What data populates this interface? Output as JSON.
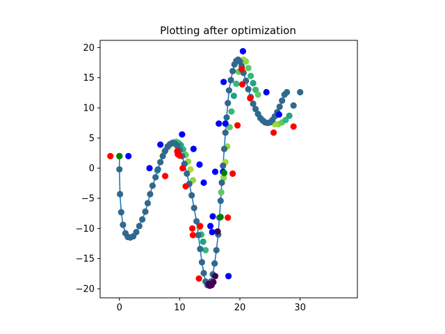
{
  "chart_data": {
    "type": "scatter",
    "title": "Plotting after optimization",
    "xlabel": "",
    "ylabel": "",
    "xlim": [
      -3.2,
      39.5
    ],
    "ylim": [
      -21.5,
      21.2
    ],
    "xticks": [
      0,
      10,
      20,
      30
    ],
    "yticks": [
      -20,
      -15,
      -10,
      -5,
      0,
      5,
      10,
      15,
      20
    ],
    "grid": false,
    "legend": "none",
    "colors": {
      "line": "#1f77b4",
      "path_points": "#31688e",
      "blue_points": "#0000ff",
      "red_points": "#ff0000",
      "green_points": "#008000"
    },
    "path": {
      "x": [
        0.0,
        0.0,
        0.1,
        0.3,
        0.6,
        1.0,
        1.4,
        1.8,
        2.3,
        2.8,
        3.3,
        3.8,
        4.3,
        4.7,
        5.1,
        5.5,
        6.0,
        6.4,
        6.8,
        7.2,
        7.6,
        8.0,
        8.4,
        8.8,
        9.2,
        9.6,
        10.0,
        10.4,
        10.8,
        11.2,
        11.6,
        12.0,
        12.4,
        12.8,
        13.1,
        13.4,
        13.7,
        14.0,
        14.3,
        14.6,
        14.9,
        15.2,
        15.5,
        15.8,
        16.1,
        16.4,
        16.6,
        16.8,
        17.0,
        17.2,
        17.4,
        17.6,
        17.8,
        18.0,
        18.2,
        18.5,
        18.8,
        19.1,
        19.4,
        19.7,
        20.0,
        20.3,
        20.6,
        21.0,
        21.4,
        21.8,
        22.2,
        22.6,
        23.0,
        23.4,
        23.8,
        24.2,
        24.6,
        25.0,
        25.4,
        25.8,
        26.2,
        26.6,
        27.0,
        27.4,
        27.8
      ],
      "y": [
        2.0,
        -0.2,
        -4.3,
        -7.3,
        -9.4,
        -10.8,
        -11.4,
        -11.5,
        -11.3,
        -10.6,
        -9.6,
        -8.5,
        -7.2,
        -5.8,
        -4.3,
        -2.9,
        -1.5,
        -0.2,
        1.0,
        2.0,
        2.9,
        3.6,
        4.0,
        4.2,
        4.1,
        3.7,
        3.0,
        2.0,
        0.7,
        -0.9,
        -2.6,
        -4.5,
        -6.6,
        -8.8,
        -11.1,
        -13.4,
        -15.6,
        -17.4,
        -18.8,
        -19.4,
        -19.4,
        -18.8,
        -17.6,
        -15.8,
        -13.6,
        -11.0,
        -8.2,
        -5.4,
        -2.4,
        0.4,
        3.2,
        5.9,
        8.4,
        10.8,
        12.9,
        14.6,
        16.1,
        17.2,
        17.8,
        18.0,
        17.7,
        16.9,
        15.8,
        14.5,
        13.1,
        11.8,
        10.7,
        9.8,
        9.0,
        8.3,
        7.9,
        7.6,
        7.5,
        7.6,
        8.0,
        8.6,
        9.3,
        10.2,
        11.2,
        12.2,
        12.6
      ]
    },
    "path_end": {
      "x": [
        28.9,
        30.0
      ],
      "y": [
        10.4,
        12.6
      ]
    },
    "blue_points": {
      "x": [
        1.5,
        5.0,
        6.8,
        10.4,
        12.3,
        13.3,
        14.0,
        15.1,
        15.4,
        15.5,
        15.9,
        16.5,
        17.2,
        17.3,
        17.6,
        18.1,
        20.5,
        24.4,
        26.5
      ],
      "y": [
        2.0,
        0.0,
        3.9,
        5.6,
        3.2,
        0.6,
        -2.4,
        -9.6,
        -10.6,
        -8.0,
        -0.6,
        7.4,
        -0.6,
        14.3,
        7.4,
        -17.9,
        19.4,
        12.6,
        8.9
      ]
    },
    "red_points": {
      "x": [
        -1.5,
        7.6,
        9.6,
        9.7,
        10.0,
        10.5,
        11.0,
        12.1,
        12.2,
        13.2,
        13.4,
        18.0,
        18.8,
        19.6,
        20.3,
        20.4,
        21.7,
        25.6,
        28.9
      ],
      "y": [
        2.0,
        -1.3,
        2.8,
        2.3,
        2.1,
        0.0,
        -3.0,
        -10.0,
        -11.1,
        -18.3,
        -9.6,
        -8.2,
        -0.9,
        7.1,
        16.4,
        13.9,
        11.6,
        5.9,
        6.9
      ]
    },
    "green_points": {
      "x": [
        0.0,
        16.8,
        17.4
      ],
      "y": [
        2.0,
        -8.1,
        -0.8
      ]
    },
    "highlight_points": {
      "x": [
        6.3,
        6.8,
        7.5,
        8.1,
        8.6,
        9.0,
        9.4,
        9.8,
        10.2,
        10.6,
        11.0,
        11.4,
        11.8,
        12.2,
        13.3,
        13.6,
        13.9,
        14.3,
        16.9,
        17.3,
        17.6,
        17.9,
        18.3,
        18.6,
        19.0,
        19.4,
        19.8,
        20.2,
        20.6,
        21.0,
        21.4,
        21.8,
        22.2,
        22.6,
        23.0,
        25.2,
        25.8,
        26.4,
        27.0,
        27.6,
        28.2
      ],
      "y": [
        -0.4,
        1.0,
        2.7,
        3.5,
        4.0,
        4.3,
        4.4,
        4.2,
        3.8,
        3.1,
        2.2,
        1.1,
        -0.2,
        -2.0,
        -9.8,
        -11.0,
        -12.2,
        -13.6,
        -4.0,
        -1.6,
        1.0,
        3.6,
        6.8,
        9.4,
        12.0,
        14.0,
        16.0,
        17.4,
        18.0,
        17.7,
        16.6,
        15.3,
        14.1,
        13.0,
        12.2,
        7.7,
        7.3,
        7.3,
        7.6,
        8.0,
        8.7
      ],
      "shades": [
        "#20a386",
        "#35b779",
        "#5ec962",
        "#8fd744",
        "#a8db34",
        "#8fd744",
        "#5ec962",
        "#35b779"
      ]
    },
    "dark_points": {
      "x": [
        14.8,
        15.0,
        15.3,
        15.6,
        15.9,
        16.3
      ],
      "y": [
        -19.2,
        -19.5,
        -19.4,
        -18.9,
        -17.9,
        -10.5
      ],
      "color": "#440154"
    }
  }
}
